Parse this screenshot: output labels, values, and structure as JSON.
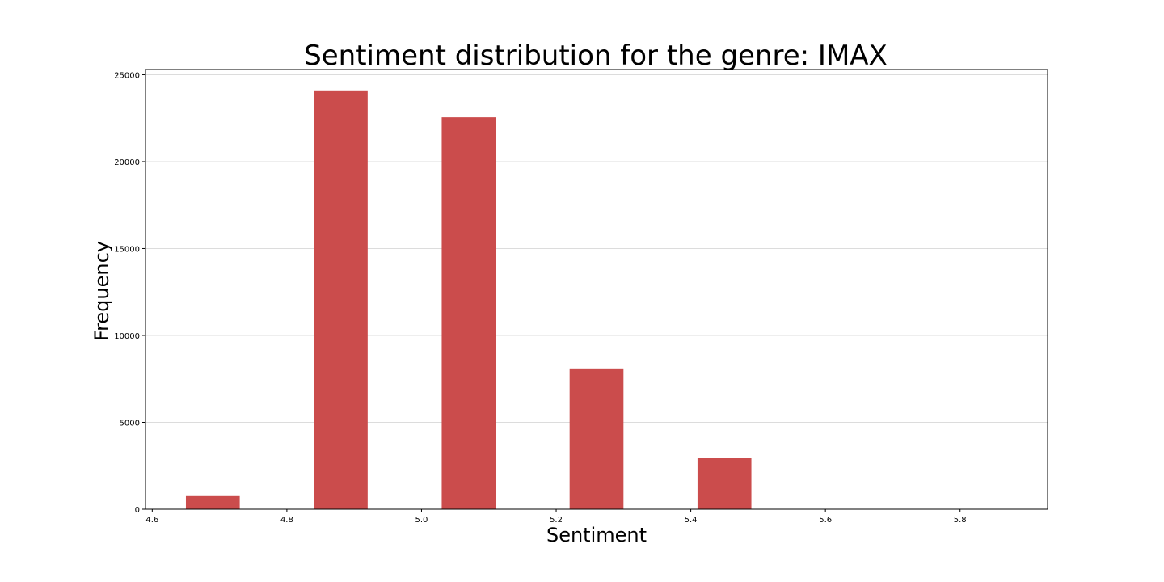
{
  "chart_data": {
    "type": "bar",
    "title": "Sentiment distribution for the genre: IMAX",
    "xlabel": "Sentiment",
    "ylabel": "Frequency",
    "xlim": [
      4.59,
      5.93
    ],
    "ylim": [
      0,
      25300
    ],
    "xticks": [
      4.6,
      4.8,
      5.0,
      5.2,
      5.4,
      5.6,
      5.8
    ],
    "xtick_labels": [
      "4.6",
      "4.8",
      "5.0",
      "5.2",
      "5.4",
      "5.6",
      "5.8"
    ],
    "yticks": [
      0,
      5000,
      10000,
      15000,
      20000,
      25000
    ],
    "ytick_labels": [
      "0",
      "5000",
      "10000",
      "15000",
      "20000",
      "25000"
    ],
    "grid": "y",
    "bar_color": "#cb4c4c",
    "bins": [
      {
        "x0": 4.65,
        "x1": 4.73,
        "value": 800
      },
      {
        "x0": 4.84,
        "x1": 4.92,
        "value": 24100
      },
      {
        "x0": 5.03,
        "x1": 5.11,
        "value": 22550
      },
      {
        "x0": 5.22,
        "x1": 5.3,
        "value": 8100
      },
      {
        "x0": 5.41,
        "x1": 5.49,
        "value": 2970
      }
    ]
  }
}
